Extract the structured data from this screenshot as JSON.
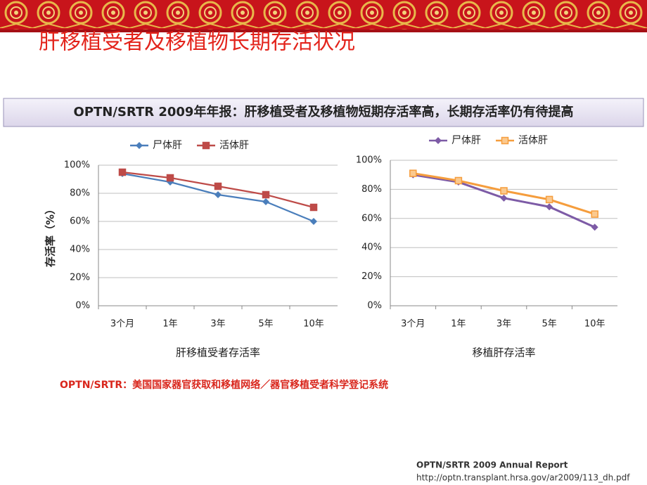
{
  "slide": {
    "title": "肝移植受者及移植物长期存活状况",
    "banner": [
      "OPTN/SRTR 2009年年报：肝移植受者及移植物短期存活率高，",
      "长期存活率",
      "仍有待提高"
    ],
    "note": "OPTN/SRTR：美国国家器官获取和移植网络／器官移植受者科学登记系统",
    "source": "OPTN/SRTR  2009 Annual Report",
    "url": "http://optn.transplant.hrsa.gov/ar2009/113_dh.pdf"
  },
  "chart_data": [
    {
      "type": "line",
      "x_label": "肝移植受者存活率",
      "y_label": "存活率（%）",
      "categories": [
        "3个月",
        "1年",
        "3年",
        "5年",
        "10年"
      ],
      "series": [
        {
          "name": "尸体肝",
          "color": "#4a7ebb",
          "marker": "diamond",
          "values": [
            94,
            88,
            79,
            74,
            60
          ]
        },
        {
          "name": "活体肝",
          "color": "#be4b48",
          "marker": "square",
          "values": [
            95,
            91,
            85,
            79,
            70
          ]
        }
      ],
      "ylim": [
        0,
        100
      ],
      "yticks": [
        {
          "value": 0,
          "label": "0%"
        },
        {
          "value": 20,
          "label": "20%"
        },
        {
          "value": 40,
          "label": "40%"
        },
        {
          "value": 60,
          "label": "60%"
        },
        {
          "value": 80,
          "label": "80%"
        },
        {
          "value": 100,
          "label": "100%"
        }
      ],
      "grid": true
    },
    {
      "type": "line",
      "x_label": "移植肝存活率",
      "categories": [
        "3个月",
        "1年",
        "3年",
        "5年",
        "10年"
      ],
      "series": [
        {
          "name": "尸体肝",
          "color": "#7d5ba6",
          "marker": "diamond",
          "values": [
            90,
            85,
            74,
            68,
            54
          ]
        },
        {
          "name": "活体肝",
          "color": "#f59d3d",
          "marker": "square",
          "values": [
            91,
            86,
            79,
            73,
            63
          ]
        }
      ],
      "ylim": [
        0,
        100
      ],
      "yticks": [
        {
          "value": 0,
          "label": "0%"
        },
        {
          "value": 20,
          "label": "20%"
        },
        {
          "value": 40,
          "label": "40%"
        },
        {
          "value": 60,
          "label": "60%"
        },
        {
          "value": 80,
          "label": "80%"
        },
        {
          "value": 100,
          "label": "100%"
        }
      ],
      "grid": true
    }
  ]
}
